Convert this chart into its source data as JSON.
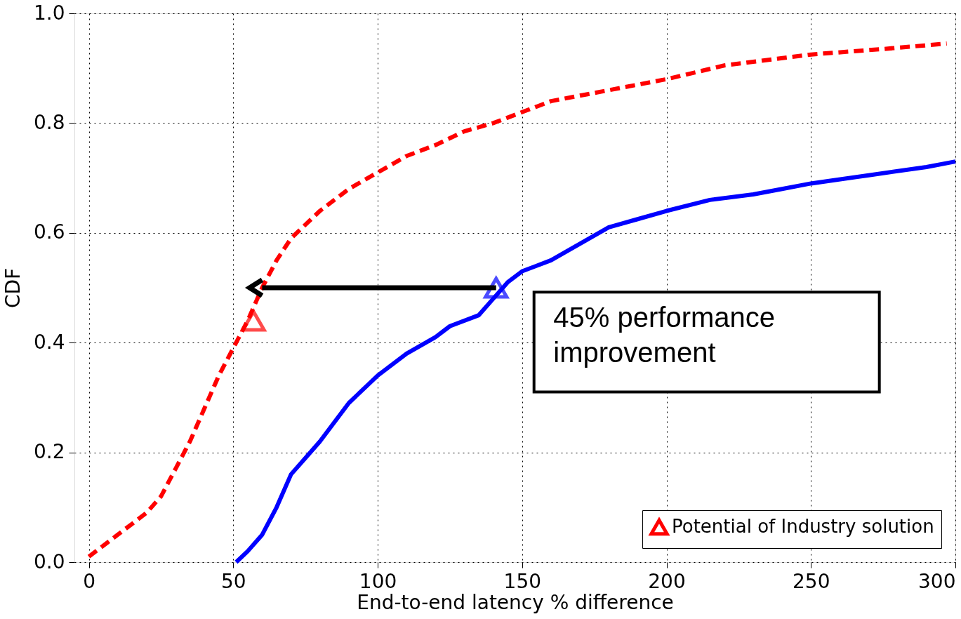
{
  "chart_data": {
    "type": "line",
    "xlabel": "End-to-end latency % difference",
    "ylabel": "CDF",
    "xlim": [
      -5,
      300
    ],
    "xticks": [
      0,
      50,
      100,
      150,
      200,
      250,
      300
    ],
    "ylim": [
      0,
      1
    ],
    "yticks": [
      {
        "value": 0,
        "label": "0.0"
      },
      {
        "value": 0.2,
        "label": "0.2"
      },
      {
        "value": 0.4,
        "label": "0.4"
      },
      {
        "value": 0.6,
        "label": "0.6"
      },
      {
        "value": 0.8,
        "label": "0.8"
      },
      {
        "value": 1,
        "label": "1.0"
      }
    ],
    "grid": true,
    "legend": "bottom right",
    "annotations": [
      "45% performance\nimprovement"
    ],
    "series": [
      {
        "color": "#0000ff",
        "line_style": "solid",
        "x": [
          51,
          55,
          60,
          65,
          70,
          75,
          80,
          90,
          100,
          110,
          120,
          125,
          135,
          140,
          145,
          150,
          160,
          170,
          180,
          190,
          200,
          215,
          230,
          240,
          250,
          270,
          290,
          300
        ],
        "values": [
          0,
          0.02,
          0.05,
          0.1,
          0.16,
          0.19,
          0.22,
          0.29,
          0.34,
          0.38,
          0.41,
          0.43,
          0.45,
          0.48,
          0.51,
          0.53,
          0.55,
          0.58,
          0.61,
          0.625,
          0.64,
          0.66,
          0.67,
          0.68,
          0.69,
          0.705,
          0.72,
          0.73
        ]
      },
      {
        "type": "scatter",
        "color": "#0000ff",
        "marker": "triangle",
        "x": [
          141
        ],
        "values": [
          0.5
        ]
      },
      {
        "name": "Potential of Industry solution",
        "color": "#ff0000",
        "line_style": "dashed",
        "x": [
          0,
          10,
          20,
          25,
          30,
          35,
          40,
          45,
          50,
          55,
          60,
          65,
          70,
          80,
          90,
          100,
          110,
          120,
          130,
          140,
          150,
          160,
          175,
          200,
          220,
          250,
          275,
          297
        ],
        "values": [
          0.01,
          0.05,
          0.09,
          0.12,
          0.17,
          0.22,
          0.28,
          0.34,
          0.39,
          0.44,
          0.5,
          0.55,
          0.59,
          0.64,
          0.68,
          0.71,
          0.74,
          0.76,
          0.785,
          0.8,
          0.82,
          0.84,
          0.855,
          0.88,
          0.905,
          0.925,
          0.935,
          0.945
        ]
      },
      {
        "type": "scatter",
        "color": "#ff0000",
        "marker": "triangle",
        "x": [
          57
        ],
        "values": [
          0.44
        ]
      }
    ]
  }
}
